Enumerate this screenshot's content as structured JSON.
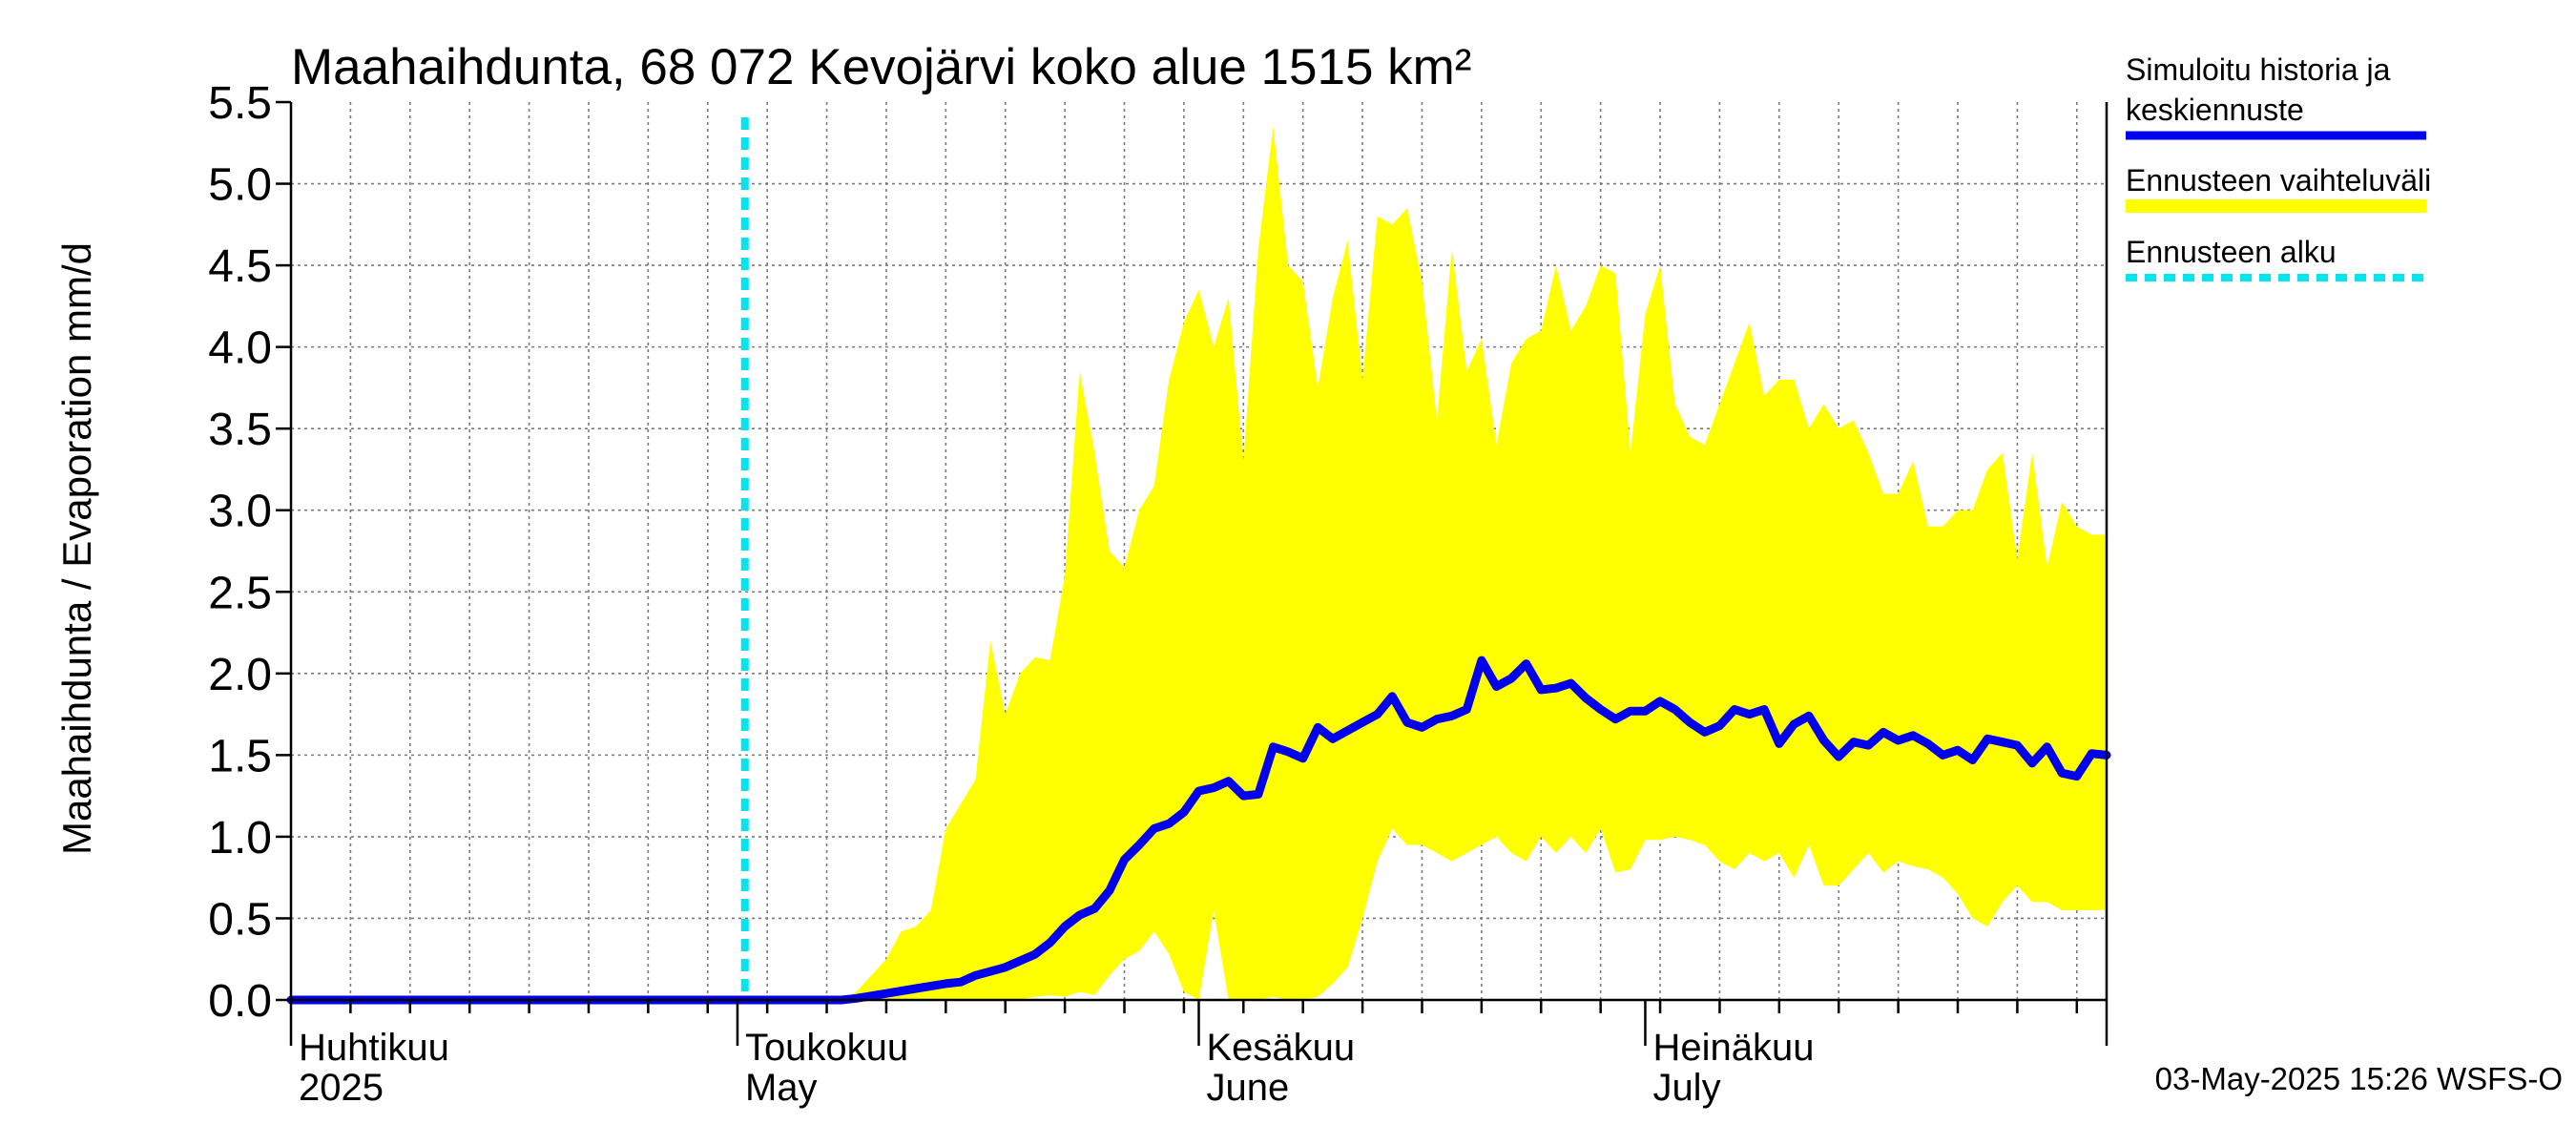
{
  "chart_data": {
    "type": "area",
    "title": "Maahaihdunta, 68 072 Kevojärvi koko alue 1515 km²",
    "ylabel": "Maahaihdunta / Evaporation   mm/d",
    "ylim": [
      0,
      5.5
    ],
    "yticks": [
      "0.0",
      "0.5",
      "1.0",
      "1.5",
      "2.0",
      "2.5",
      "3.0",
      "3.5",
      "4.0",
      "4.5",
      "5.0",
      "5.5"
    ],
    "xlim_days": [
      0,
      122
    ],
    "month_labels": [
      {
        "day": 0,
        "fi": "Huhtikuu",
        "en": "2025"
      },
      {
        "day": 30,
        "fi": "Toukokuu",
        "en": "May"
      },
      {
        "day": 61,
        "fi": "Kesäkuu",
        "en": "June"
      },
      {
        "day": 91,
        "fi": "Heinäkuu",
        "en": "July"
      }
    ],
    "forecast_start_day": 30.5,
    "legend": [
      {
        "label_line1": "Simuloitu historia ja",
        "label_line2": "keskiennuste",
        "color": "#0000ee",
        "style": "solid"
      },
      {
        "label_line1": "Ennusteen vaihteluväli",
        "label_line2": "",
        "color": "#ffff00",
        "style": "band"
      },
      {
        "label_line1": "Ennusteen alku",
        "label_line2": "",
        "color": "#00e5ee",
        "style": "dotted"
      }
    ],
    "series": [
      {
        "name": "Simuloitu historia ja keskiennuste",
        "color": "#0000ee",
        "points": [
          [
            0,
            0
          ],
          [
            30,
            0
          ],
          [
            37,
            0
          ],
          [
            38,
            0.01
          ],
          [
            40,
            0.04
          ],
          [
            42,
            0.07
          ],
          [
            44,
            0.1
          ],
          [
            45,
            0.11
          ],
          [
            46,
            0.15
          ],
          [
            48,
            0.2
          ],
          [
            50,
            0.28
          ],
          [
            51,
            0.35
          ],
          [
            52,
            0.45
          ],
          [
            53,
            0.52
          ],
          [
            54,
            0.56
          ],
          [
            55,
            0.67
          ],
          [
            56,
            0.86
          ],
          [
            57,
            0.95
          ],
          [
            58,
            1.05
          ],
          [
            59,
            1.08
          ],
          [
            60,
            1.15
          ],
          [
            61,
            1.28
          ],
          [
            62,
            1.3
          ],
          [
            63,
            1.34
          ],
          [
            64,
            1.25
          ],
          [
            65,
            1.26
          ],
          [
            66,
            1.55
          ],
          [
            67,
            1.52
          ],
          [
            68,
            1.48
          ],
          [
            69,
            1.67
          ],
          [
            70,
            1.6
          ],
          [
            71,
            1.65
          ],
          [
            72,
            1.7
          ],
          [
            73,
            1.75
          ],
          [
            74,
            1.86
          ],
          [
            75,
            1.7
          ],
          [
            76,
            1.67
          ],
          [
            77,
            1.72
          ],
          [
            78,
            1.74
          ],
          [
            79,
            1.78
          ],
          [
            80,
            2.08
          ],
          [
            81,
            1.92
          ],
          [
            82,
            1.97
          ],
          [
            83,
            2.06
          ],
          [
            84,
            1.9
          ],
          [
            85,
            1.91
          ],
          [
            86,
            1.94
          ],
          [
            87,
            1.85
          ],
          [
            88,
            1.78
          ],
          [
            89,
            1.72
          ],
          [
            90,
            1.77
          ],
          [
            91,
            1.77
          ],
          [
            92,
            1.83
          ],
          [
            93,
            1.78
          ],
          [
            94,
            1.7
          ],
          [
            95,
            1.64
          ],
          [
            96,
            1.68
          ],
          [
            97,
            1.78
          ],
          [
            98,
            1.75
          ],
          [
            99,
            1.78
          ],
          [
            100,
            1.57
          ],
          [
            101,
            1.69
          ],
          [
            102,
            1.74
          ],
          [
            103,
            1.59
          ],
          [
            104,
            1.49
          ],
          [
            105,
            1.58
          ],
          [
            106,
            1.56
          ],
          [
            107,
            1.64
          ],
          [
            108,
            1.59
          ],
          [
            109,
            1.62
          ],
          [
            110,
            1.57
          ],
          [
            111,
            1.5
          ],
          [
            112,
            1.53
          ],
          [
            113,
            1.47
          ],
          [
            114,
            1.6
          ],
          [
            115,
            1.58
          ],
          [
            116,
            1.56
          ],
          [
            117,
            1.45
          ],
          [
            118,
            1.55
          ],
          [
            119,
            1.39
          ],
          [
            120,
            1.37
          ],
          [
            121,
            1.51
          ],
          [
            122,
            1.5
          ]
        ]
      },
      {
        "name": "Ennusteen vaihteluväli (ylä)",
        "color": "#ffff00",
        "points": [
          [
            0,
            0
          ],
          [
            37,
            0
          ],
          [
            38,
            0.05
          ],
          [
            39,
            0.15
          ],
          [
            40,
            0.25
          ],
          [
            41,
            0.42
          ],
          [
            42,
            0.45
          ],
          [
            43,
            0.55
          ],
          [
            44,
            1.05
          ],
          [
            45,
            1.2
          ],
          [
            46,
            1.35
          ],
          [
            47,
            2.2
          ],
          [
            48,
            1.75
          ],
          [
            49,
            2.0
          ],
          [
            50,
            2.1
          ],
          [
            51,
            2.08
          ],
          [
            52,
            2.6
          ],
          [
            53,
            3.85
          ],
          [
            54,
            3.35
          ],
          [
            55,
            2.75
          ],
          [
            56,
            2.65
          ],
          [
            57,
            3.0
          ],
          [
            58,
            3.15
          ],
          [
            59,
            3.8
          ],
          [
            60,
            4.15
          ],
          [
            61,
            4.35
          ],
          [
            62,
            4.0
          ],
          [
            63,
            4.3
          ],
          [
            64,
            3.3
          ],
          [
            65,
            4.6
          ],
          [
            66,
            5.35
          ],
          [
            67,
            4.5
          ],
          [
            68,
            4.4
          ],
          [
            69,
            3.75
          ],
          [
            70,
            4.3
          ],
          [
            71,
            4.65
          ],
          [
            72,
            3.8
          ],
          [
            73,
            4.8
          ],
          [
            74,
            4.75
          ],
          [
            75,
            4.85
          ],
          [
            76,
            4.4
          ],
          [
            77,
            3.55
          ],
          [
            78,
            4.6
          ],
          [
            79,
            3.85
          ],
          [
            80,
            4.05
          ],
          [
            81,
            3.4
          ],
          [
            82,
            3.9
          ],
          [
            83,
            4.05
          ],
          [
            84,
            4.1
          ],
          [
            85,
            4.5
          ],
          [
            86,
            4.1
          ],
          [
            87,
            4.25
          ],
          [
            88,
            4.5
          ],
          [
            89,
            4.45
          ],
          [
            90,
            3.35
          ],
          [
            91,
            4.2
          ],
          [
            92,
            4.5
          ],
          [
            93,
            3.65
          ],
          [
            94,
            3.45
          ],
          [
            95,
            3.4
          ],
          [
            96,
            3.65
          ],
          [
            97,
            3.9
          ],
          [
            98,
            4.15
          ],
          [
            99,
            3.7
          ],
          [
            100,
            3.8
          ],
          [
            101,
            3.8
          ],
          [
            102,
            3.5
          ],
          [
            103,
            3.65
          ],
          [
            104,
            3.5
          ],
          [
            105,
            3.55
          ],
          [
            106,
            3.35
          ],
          [
            107,
            3.1
          ],
          [
            108,
            3.1
          ],
          [
            109,
            3.3
          ],
          [
            110,
            2.9
          ],
          [
            111,
            2.9
          ],
          [
            112,
            3.0
          ],
          [
            113,
            3.0
          ],
          [
            114,
            3.25
          ],
          [
            115,
            3.35
          ],
          [
            116,
            2.7
          ],
          [
            117,
            3.35
          ],
          [
            118,
            2.65
          ],
          [
            119,
            3.05
          ],
          [
            120,
            2.9
          ],
          [
            121,
            2.85
          ],
          [
            122,
            2.85
          ]
        ]
      },
      {
        "name": "Ennusteen vaihteluväli (ala)",
        "color": "#ffff00",
        "points": [
          [
            0,
            0
          ],
          [
            49,
            0
          ],
          [
            50,
            0.02
          ],
          [
            51,
            0.03
          ],
          [
            52,
            0.02
          ],
          [
            53,
            0.05
          ],
          [
            54,
            0.03
          ],
          [
            55,
            0.15
          ],
          [
            56,
            0.25
          ],
          [
            57,
            0.3
          ],
          [
            58,
            0.42
          ],
          [
            59,
            0.28
          ],
          [
            60,
            0.05
          ],
          [
            61,
            0.0
          ],
          [
            62,
            0.55
          ],
          [
            63,
            0.0
          ],
          [
            64,
            0.0
          ],
          [
            65,
            0.0
          ],
          [
            66,
            0.02
          ],
          [
            67,
            0.0
          ],
          [
            68,
            0.0
          ],
          [
            69,
            0.02
          ],
          [
            70,
            0.1
          ],
          [
            71,
            0.2
          ],
          [
            72,
            0.5
          ],
          [
            73,
            0.85
          ],
          [
            74,
            1.05
          ],
          [
            75,
            0.95
          ],
          [
            76,
            0.95
          ],
          [
            77,
            0.9
          ],
          [
            78,
            0.85
          ],
          [
            79,
            0.9
          ],
          [
            80,
            0.95
          ],
          [
            81,
            1.0
          ],
          [
            82,
            0.9
          ],
          [
            83,
            0.85
          ],
          [
            84,
            1.0
          ],
          [
            85,
            0.9
          ],
          [
            86,
            1.0
          ],
          [
            87,
            0.9
          ],
          [
            88,
            1.05
          ],
          [
            89,
            0.78
          ],
          [
            90,
            0.8
          ],
          [
            91,
            0.98
          ],
          [
            92,
            0.98
          ],
          [
            93,
            1.0
          ],
          [
            94,
            0.98
          ],
          [
            95,
            0.95
          ],
          [
            96,
            0.85
          ],
          [
            97,
            0.8
          ],
          [
            98,
            0.9
          ],
          [
            99,
            0.85
          ],
          [
            100,
            0.9
          ],
          [
            101,
            0.75
          ],
          [
            102,
            0.95
          ],
          [
            103,
            0.7
          ],
          [
            104,
            0.7
          ],
          [
            105,
            0.8
          ],
          [
            106,
            0.9
          ],
          [
            107,
            0.78
          ],
          [
            108,
            0.85
          ],
          [
            109,
            0.82
          ],
          [
            110,
            0.8
          ],
          [
            111,
            0.75
          ],
          [
            112,
            0.65
          ],
          [
            113,
            0.5
          ],
          [
            114,
            0.45
          ],
          [
            115,
            0.6
          ],
          [
            116,
            0.7
          ],
          [
            117,
            0.6
          ],
          [
            118,
            0.6
          ],
          [
            119,
            0.55
          ],
          [
            120,
            0.55
          ],
          [
            121,
            0.55
          ],
          [
            122,
            0.55
          ]
        ]
      }
    ]
  },
  "timestamp": "03-May-2025 15:26 WSFS-O"
}
